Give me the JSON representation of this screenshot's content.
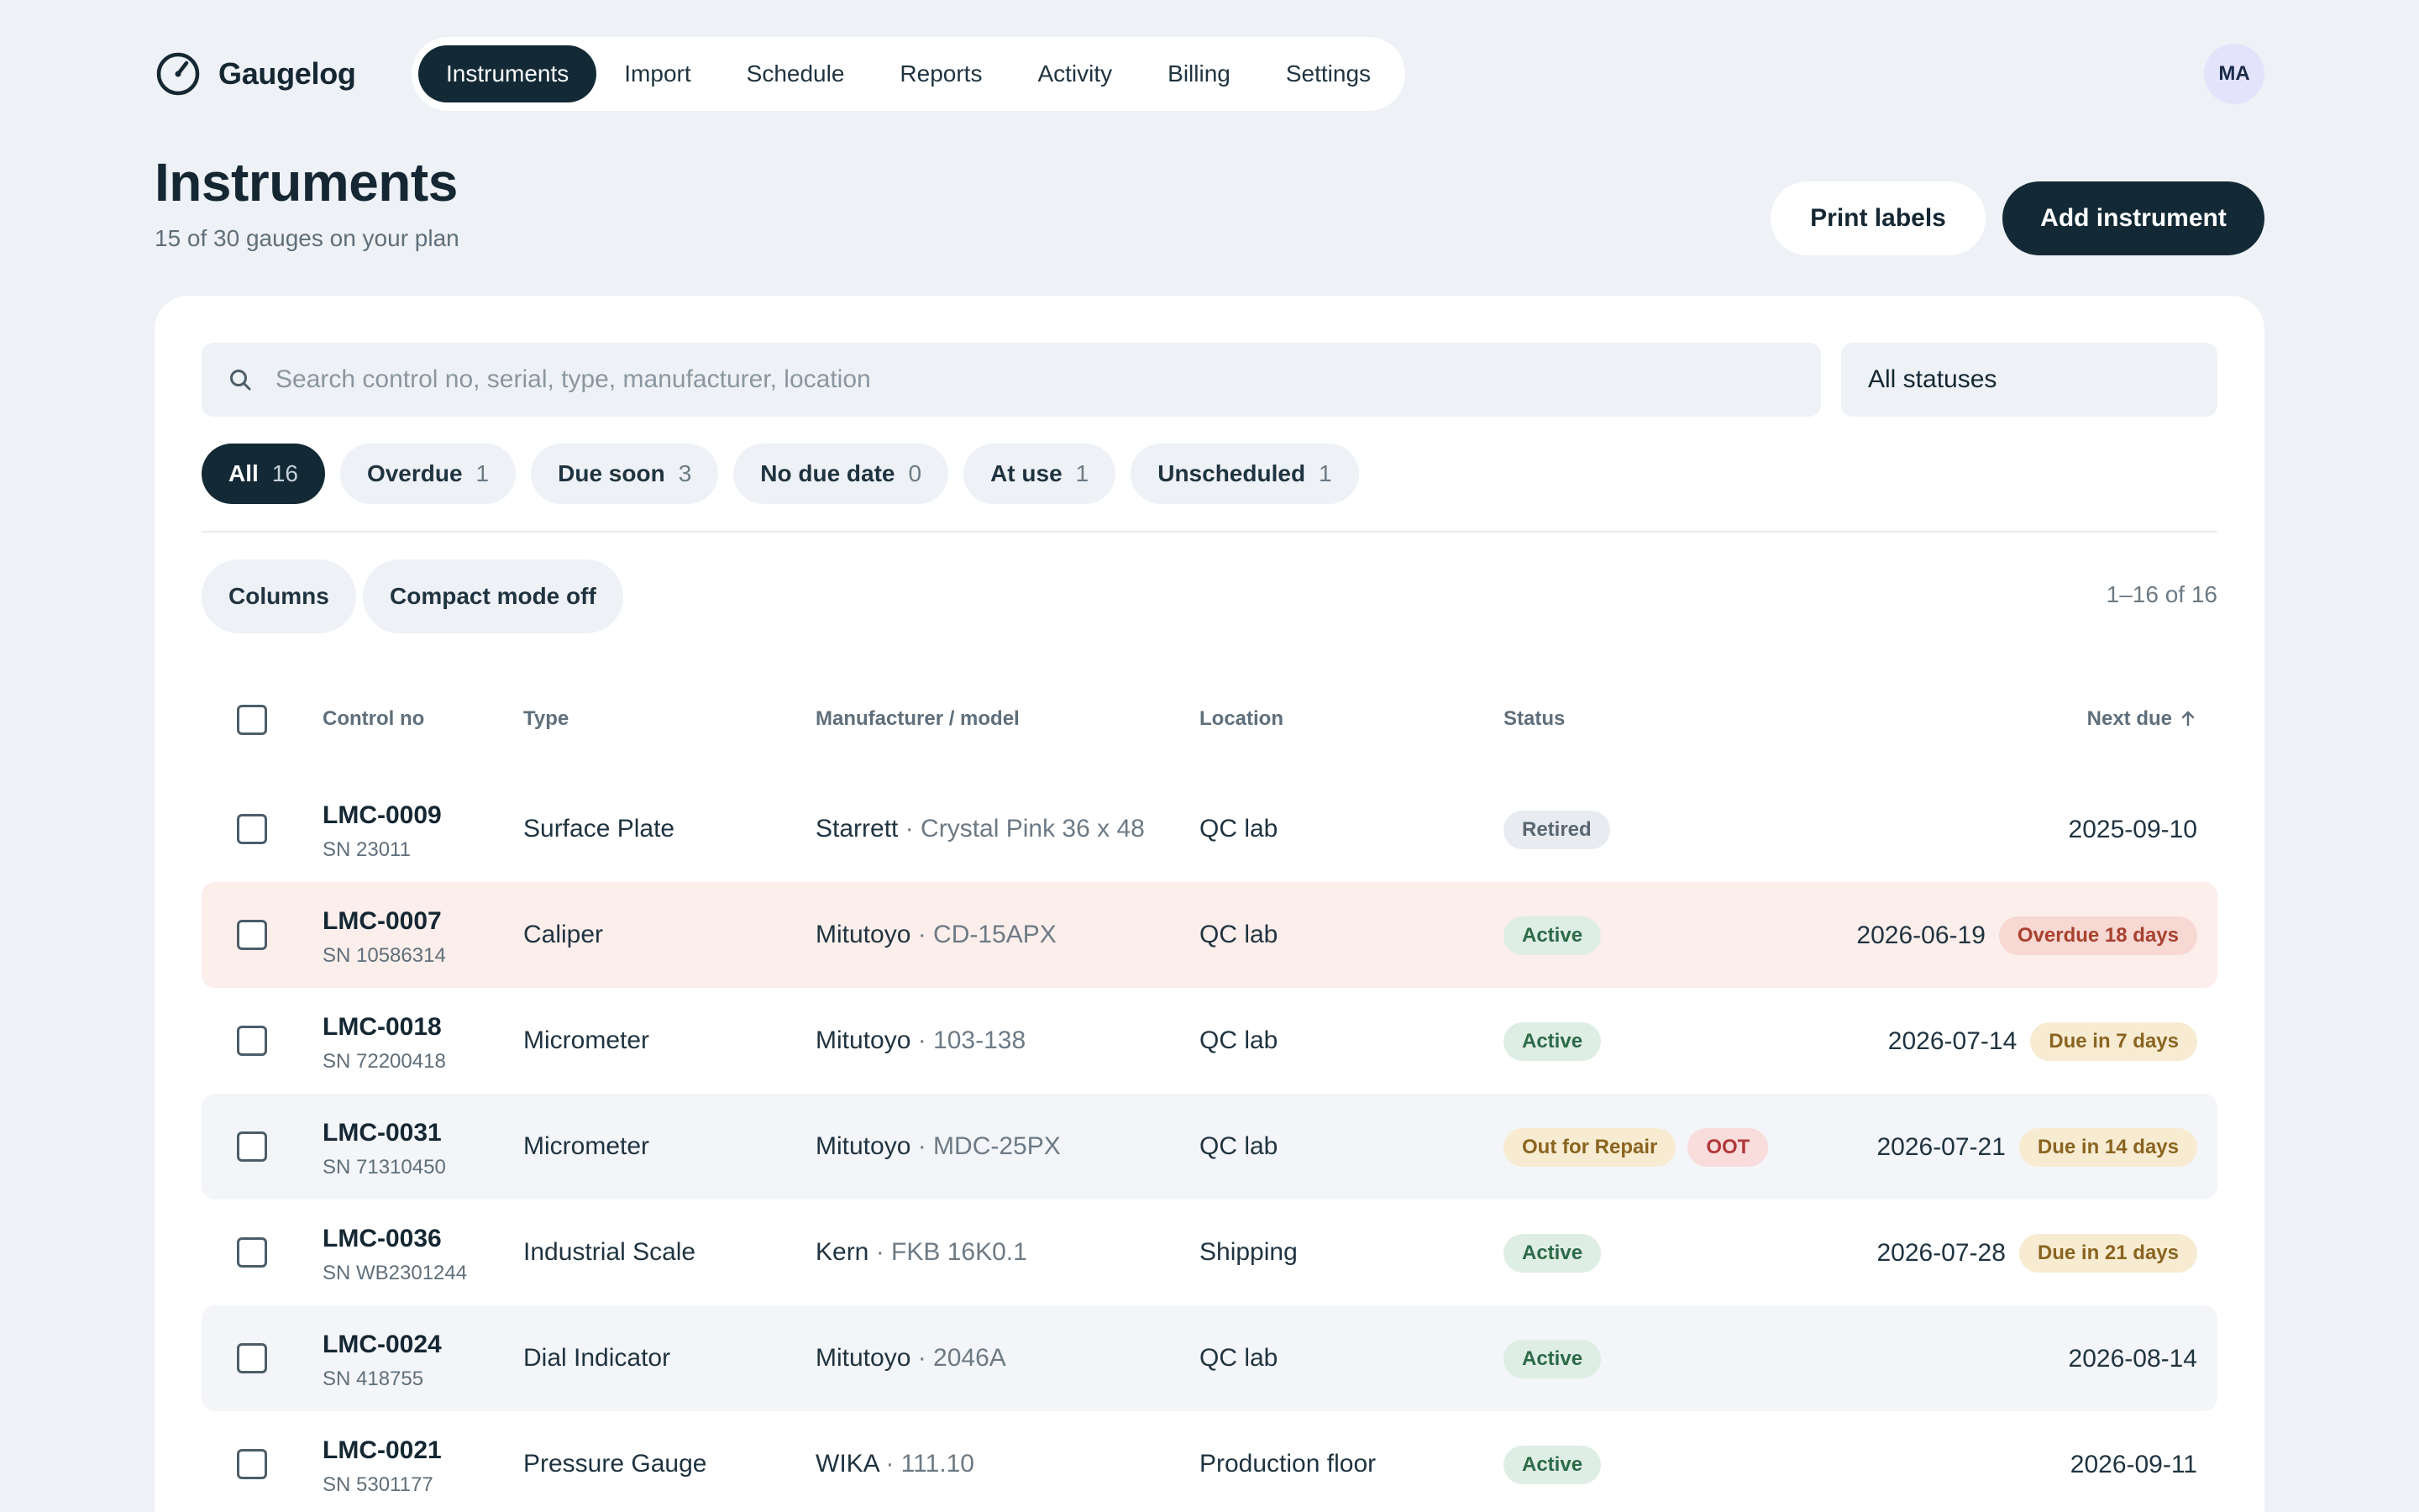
{
  "app": {
    "name": "Gaugelog",
    "user_initials": "MA"
  },
  "nav": {
    "items": [
      {
        "label": "Instruments",
        "active": true
      },
      {
        "label": "Import"
      },
      {
        "label": "Schedule"
      },
      {
        "label": "Reports"
      },
      {
        "label": "Activity"
      },
      {
        "label": "Billing"
      },
      {
        "label": "Settings"
      }
    ]
  },
  "page": {
    "title": "Instruments",
    "subtitle": "15 of 30 gauges on your plan",
    "print_labels": "Print labels",
    "add_instrument": "Add instrument"
  },
  "filters": {
    "search_placeholder": "Search control no, serial, type, manufacturer, location",
    "status_select": "All statuses",
    "chips": [
      {
        "label": "All",
        "count": "16",
        "active": true
      },
      {
        "label": "Overdue",
        "count": "1"
      },
      {
        "label": "Due soon",
        "count": "3"
      },
      {
        "label": "No due date",
        "count": "0"
      },
      {
        "label": "At use",
        "count": "1"
      },
      {
        "label": "Unscheduled",
        "count": "1"
      }
    ]
  },
  "toolbar": {
    "columns": "Columns",
    "compact": "Compact mode off",
    "range": "1–16 of 16"
  },
  "table": {
    "columns": {
      "control_no": "Control no",
      "type": "Type",
      "manufacturer": "Manufacturer / model",
      "location": "Location",
      "status": "Status",
      "next_due": "Next due"
    },
    "rows": [
      {
        "control_no": "LMC-0009",
        "serial": "SN 23011",
        "type": "Surface Plate",
        "manufacturer": "Starrett",
        "model": " · Crystal Pink 36 x 48",
        "location": "QC lab",
        "status": "Retired",
        "next_due": "2025-09-10"
      },
      {
        "control_no": "LMC-0007",
        "serial": "SN 10586314",
        "type": "Caliper",
        "manufacturer": "Mitutoyo",
        "model": " · CD-15APX",
        "location": "QC lab",
        "status": "Active",
        "next_due": "2026-06-19",
        "due_badge": "Overdue 18 days"
      },
      {
        "control_no": "LMC-0018",
        "serial": "SN 72200418",
        "type": "Micrometer",
        "manufacturer": "Mitutoyo",
        "model": " · 103-138",
        "location": "QC lab",
        "status": "Active",
        "next_due": "2026-07-14",
        "due_badge": "Due in 7 days"
      },
      {
        "control_no": "LMC-0031",
        "serial": "SN 71310450",
        "type": "Micrometer",
        "manufacturer": "Mitutoyo",
        "model": " · MDC-25PX",
        "location": "QC lab",
        "status": "Out for Repair",
        "status_extra": "OOT",
        "next_due": "2026-07-21",
        "due_badge": "Due in 14 days"
      },
      {
        "control_no": "LMC-0036",
        "serial": "SN WB2301244",
        "type": "Industrial Scale",
        "manufacturer": "Kern",
        "model": " · FKB 16K0.1",
        "location": "Shipping",
        "status": "Active",
        "next_due": "2026-07-28",
        "due_badge": "Due in 21 days"
      },
      {
        "control_no": "LMC-0024",
        "serial": "SN 418755",
        "type": "Dial Indicator",
        "manufacturer": "Mitutoyo",
        "model": " · 2046A",
        "location": "QC lab",
        "status": "Active",
        "next_due": "2026-08-14"
      },
      {
        "control_no": "LMC-0021",
        "serial": "SN 5301177",
        "type": "Pressure Gauge",
        "manufacturer": "WIKA",
        "model": " · 111.10",
        "location": "Production floor",
        "status": "Active",
        "next_due": "2026-09-11"
      }
    ]
  }
}
